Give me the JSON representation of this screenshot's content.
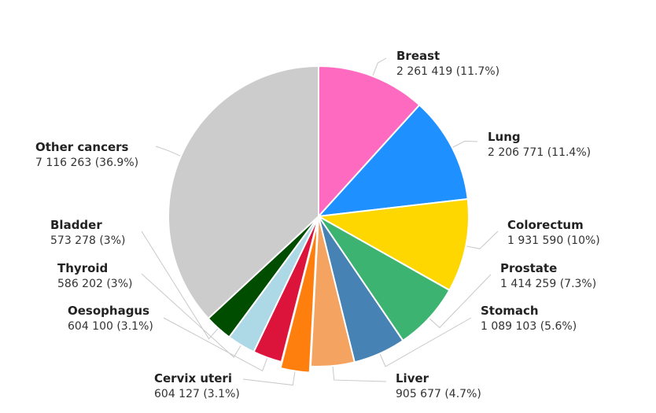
{
  "chart_data": {
    "type": "pie",
    "title": "",
    "slices": [
      {
        "label": "Breast",
        "value": 2261419,
        "value_text": "2 261 419 (11.7%)",
        "color": "#ff6ac1"
      },
      {
        "label": "Lung",
        "value": 2206771,
        "value_text": "2 206 771 (11.4%)",
        "color": "#1e90ff"
      },
      {
        "label": "Colorectum",
        "value": 1931590,
        "value_text": "1 931 590 (10%)",
        "color": "#ffd700"
      },
      {
        "label": "Prostate",
        "value": 1414259,
        "value_text": "1 414 259 (7.3%)",
        "color": "#3cb371"
      },
      {
        "label": "Stomach",
        "value": 1089103,
        "value_text": "1 089 103 (5.6%)",
        "color": "#4682b4"
      },
      {
        "label": "Liver",
        "value": 905677,
        "value_text": "905 677 (4.7%)",
        "color": "#f4a460"
      },
      {
        "label": "Cervix uteri",
        "value": 604127,
        "value_text": "604 127 (3.1%)",
        "color": "#ff7f0e"
      },
      {
        "label": "Oesophagus",
        "value": 604100,
        "value_text": "604 100 (3.1%)",
        "color": "#dc143c"
      },
      {
        "label": "Thyroid",
        "value": 586202,
        "value_text": "586 202 (3%)",
        "color": "#add8e6"
      },
      {
        "label": "Bladder",
        "value": 573278,
        "value_text": "573 278 (3%)",
        "color": "#004d00"
      },
      {
        "label": "Other cancers",
        "value": 7116263,
        "value_text": "7 116 263 (36.9%)",
        "color": "#cccccc"
      }
    ],
    "start_angle": "12 o'clock",
    "direction": "clockwise",
    "highlighted_slice": "Cervix uteri",
    "legend": "none"
  }
}
